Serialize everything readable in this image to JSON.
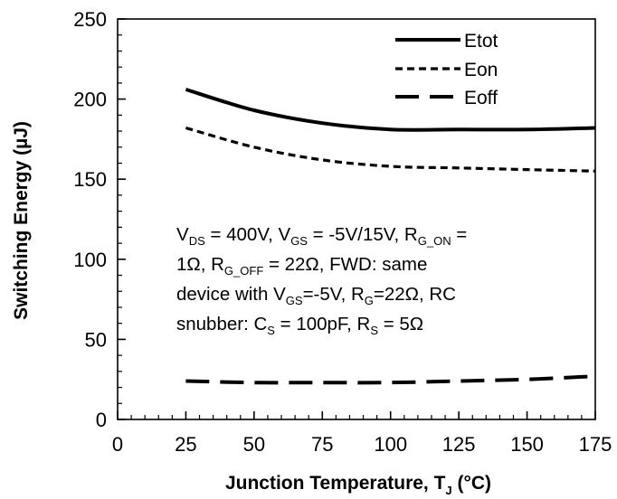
{
  "chart_data": {
    "type": "line",
    "xlabel": "Junction Temperature, TJ (°C)",
    "xlabel_main": "Junction Temperature, T",
    "xlabel_sub": "J",
    "xlabel_tail": " (°C)",
    "ylabel": "Switching Energy (µJ)",
    "xlim": [
      0,
      175
    ],
    "ylim": [
      0,
      250
    ],
    "x_ticks": [
      0,
      25,
      50,
      75,
      100,
      125,
      150,
      175
    ],
    "y_ticks": [
      0,
      50,
      100,
      150,
      200,
      250
    ],
    "grid": false,
    "legend_position": "top-right",
    "x": [
      25,
      50,
      75,
      100,
      125,
      150,
      175
    ],
    "series": [
      {
        "name": "Etot",
        "style": "solid",
        "values": [
          206,
          193,
          185,
          181,
          181,
          181,
          182
        ]
      },
      {
        "name": "Eon",
        "style": "short-dash",
        "values": [
          182,
          170,
          162,
          158,
          157,
          156,
          155
        ]
      },
      {
        "name": "Eoff",
        "style": "long-dash",
        "values": [
          24,
          23,
          23,
          23,
          24,
          25,
          27
        ]
      }
    ],
    "annotation": [
      [
        {
          "t": "V"
        },
        {
          "t": "DS",
          "sub": true
        },
        {
          "t": " = 400V, V"
        },
        {
          "t": "GS",
          "sub": true
        },
        {
          "t": " = -5V/15V, R"
        },
        {
          "t": "G_ON",
          "sub": true
        },
        {
          "t": " ="
        }
      ],
      [
        {
          "t": "1Ω, R"
        },
        {
          "t": "G_OFF",
          "sub": true
        },
        {
          "t": " = 22Ω, FWD: same"
        }
      ],
      [
        {
          "t": "device with V"
        },
        {
          "t": "GS",
          "sub": true
        },
        {
          "t": "=-5V, R"
        },
        {
          "t": "G",
          "sub": true
        },
        {
          "t": "=22Ω, RC"
        }
      ],
      [
        {
          "t": "snubber: C"
        },
        {
          "t": "S",
          "sub": true
        },
        {
          "t": " = 100pF, R"
        },
        {
          "t": "S",
          "sub": true
        },
        {
          "t": " = 5Ω"
        }
      ]
    ]
  }
}
